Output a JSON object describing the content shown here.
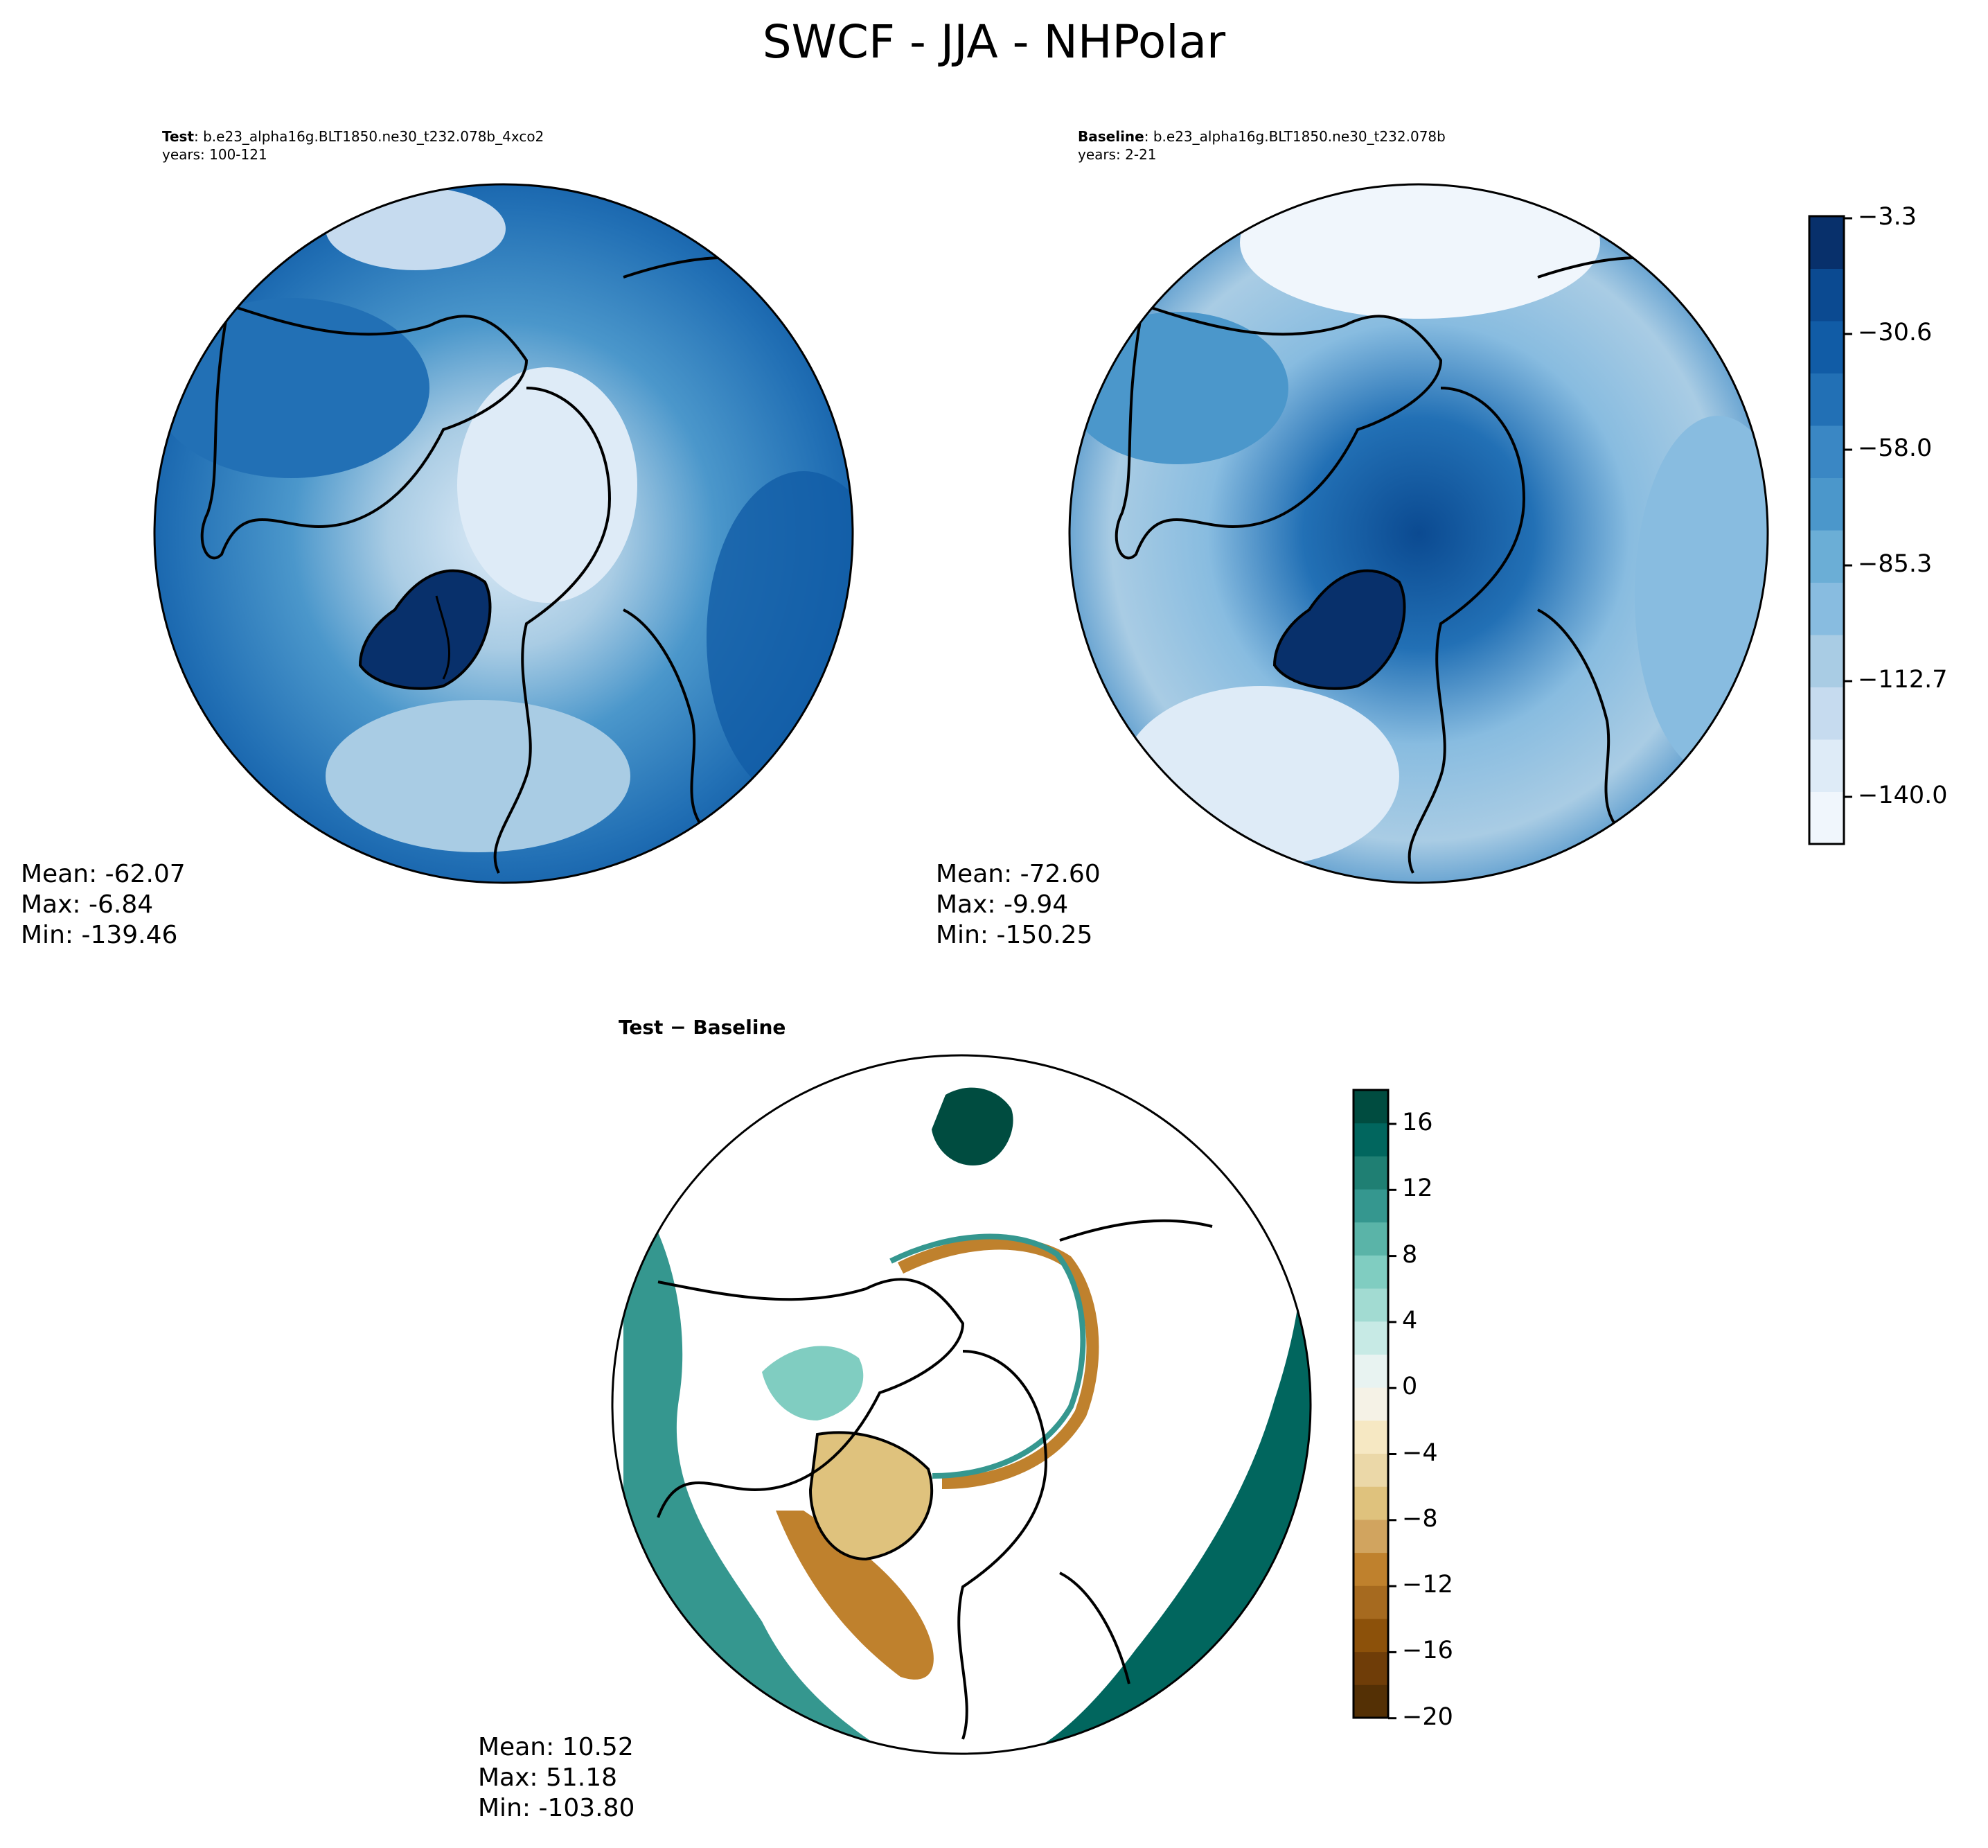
{
  "page": {
    "title": "SWCF - JJA - NHPolar"
  },
  "panels": [
    {
      "id": "test",
      "label_bold": "Test",
      "label_rest": ": b.e23_alpha16g.BLT1850.ne30_t232.078b_4xco2",
      "years": "years: 100-121",
      "stats": {
        "mean": "Mean: -62.07",
        "max": "Max: -6.84",
        "min": "Min: -139.46"
      }
    },
    {
      "id": "baseline",
      "label_bold": "Baseline",
      "label_rest": ": b.e23_alpha16g.BLT1850.ne30_t232.078b",
      "years": "years: 2-21",
      "stats": {
        "mean": "Mean: -72.60",
        "max": "Max: -9.94",
        "min": "Min: -150.25"
      }
    },
    {
      "id": "diff",
      "label_bold": "Test − Baseline",
      "stats": {
        "mean": "Mean: 10.52",
        "max": "Max: 51.18",
        "min": "Min: -103.80"
      }
    }
  ],
  "colorbars": {
    "main": {
      "ticks": [
        "−3.3",
        "−30.6",
        "−58.0",
        "−85.3",
        "−112.7",
        "−140.0"
      ],
      "colors": [
        "#f0f6fc",
        "#deebf7",
        "#c6dbef",
        "#a9cce4",
        "#88bce0",
        "#6baed6",
        "#4b97cb",
        "#3a87c4",
        "#2270b5",
        "#115ca6",
        "#0b4a91",
        "#08306b"
      ]
    },
    "diff": {
      "ticks": [
        "16",
        "12",
        "8",
        "4",
        "0",
        "−4",
        "−8",
        "−12",
        "−16",
        "−20"
      ],
      "colors": [
        "#543005",
        "#6f3d08",
        "#8c510a",
        "#a66a1f",
        "#bf812d",
        "#d1a45f",
        "#dfc27d",
        "#ebd8a8",
        "#f6e8c3",
        "#f5f2e6",
        "#e8f3f1",
        "#c7eae5",
        "#a2dbd2",
        "#80cdc1",
        "#5ab4a8",
        "#35978f",
        "#1f7f73",
        "#01665e",
        "#004c40"
      ]
    }
  }
}
